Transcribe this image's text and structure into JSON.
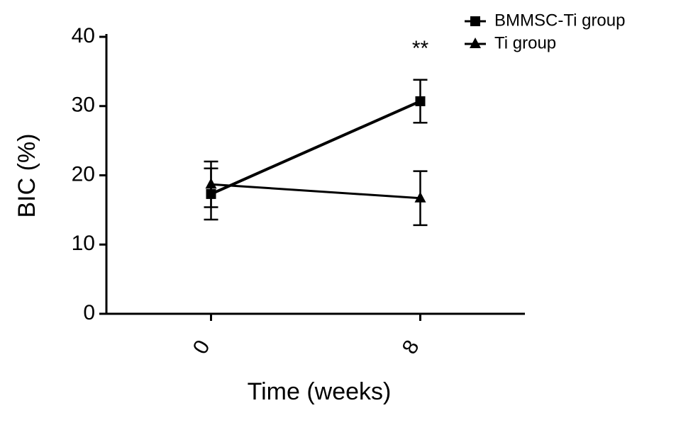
{
  "chart_data": {
    "type": "line",
    "x_label": "Time (weeks)",
    "y_label": "BIC (%)",
    "categories": [
      "0",
      "8"
    ],
    "series": [
      {
        "name": "BMMSC-Ti group",
        "color": "#000000",
        "marker": "square",
        "values": [
          17.3,
          30.7
        ],
        "errors": [
          3.7,
          3.1
        ]
      },
      {
        "name": "Ti group",
        "color": "#000000",
        "marker": "triangle",
        "values": [
          18.7,
          16.7
        ],
        "errors": [
          3.3,
          3.9
        ]
      }
    ],
    "annotations": [
      {
        "text": "**",
        "x": "8"
      }
    ],
    "ylim": [
      0,
      40
    ],
    "yticks": [
      0,
      10,
      20,
      30,
      40
    ],
    "legend": "top-right",
    "grid": false
  }
}
